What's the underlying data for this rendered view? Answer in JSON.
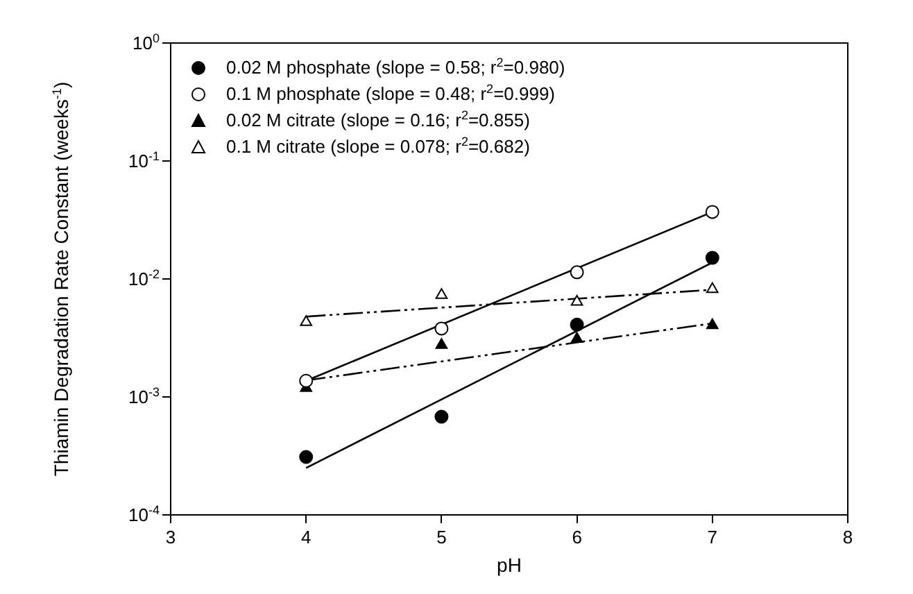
{
  "chart_data": {
    "type": "scatter",
    "xlabel": "pH",
    "ylabel": "Thiamin Degradation Rate Constant (weeks$^{-1}$)",
    "log": "y",
    "grid": false,
    "legend": "top left",
    "xlim": [
      3,
      8
    ],
    "xticks": [
      3,
      4,
      5,
      6,
      7,
      8
    ],
    "ylim": [
      0.0001,
      1
    ],
    "yticks": [
      {
        "value": 0.0001,
        "label": "10$^{-4}$"
      },
      {
        "value": 0.001,
        "label": "10$^{-3}$"
      },
      {
        "value": 0.01,
        "label": "10$^{-2}$"
      },
      {
        "value": 0.1,
        "label": "10$^{-1}$"
      },
      {
        "value": 1,
        "label": "10$^{0}$"
      }
    ],
    "series": [
      {
        "name": "0.02 M phosphate (slope = 0.58; r$^{2}$=0.980)",
        "color": "#000000",
        "marker": "circle",
        "x": [
          4,
          5,
          6,
          7
        ],
        "values": [
          0.00031,
          0.00068,
          0.0041,
          0.0151
        ]
      },
      {
        "name": "0.1 M phosphate (slope = 0.48; r$^{2}$=0.999)",
        "color": "#ffffff",
        "marker": "circle",
        "x": [
          4,
          5,
          6,
          7
        ],
        "values": [
          0.00137,
          0.0038,
          0.0114,
          0.037
        ]
      },
      {
        "name": "0.02 M citrate (slope = 0.16; r$^{2}$=0.855)",
        "color": "#000000",
        "marker": "triangle",
        "x": [
          4,
          5,
          6,
          7
        ],
        "values": [
          0.00119,
          0.00275,
          0.0031,
          0.00405
        ]
      },
      {
        "name": "0.1 M citrate (slope = 0.078; r$^{2}$=0.682)",
        "color": "#ffffff",
        "marker": "triangle",
        "x": [
          4,
          5,
          6,
          7
        ],
        "values": [
          0.0043,
          0.0073,
          0.0064,
          0.0082
        ]
      },
      {
        "type": "line",
        "color": "#000000",
        "line_style": "solid",
        "x": [
          4,
          7
        ],
        "values": [
          0.00025,
          0.0138
        ]
      },
      {
        "type": "line",
        "color": "#000000",
        "line_style": "solid",
        "x": [
          4,
          7
        ],
        "values": [
          0.00137,
          0.037
        ]
      },
      {
        "type": "line",
        "color": "#000000",
        "line_style": "dashed",
        "x": [
          4,
          7
        ],
        "values": [
          0.00138,
          0.0042
        ]
      },
      {
        "type": "line",
        "color": "#000000",
        "line_style": "dashed",
        "x": [
          4,
          7
        ],
        "values": [
          0.0048,
          0.0081
        ]
      }
    ]
  }
}
